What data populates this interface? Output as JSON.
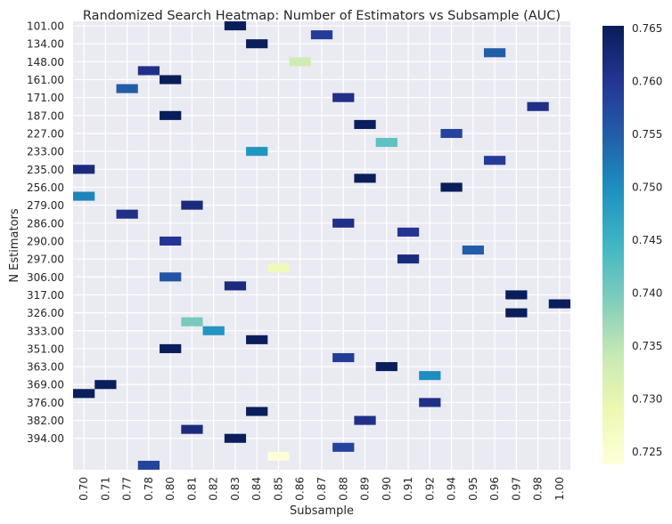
{
  "chart_data": {
    "type": "heatmap",
    "title": "Randomized Search Heatmap: Number of Estimators vs Subsample (AUC)",
    "xlabel": "Subsample",
    "ylabel": "N Estimators",
    "x_categories": [
      "0.70",
      "0.71",
      "0.77",
      "0.78",
      "0.80",
      "0.81",
      "0.82",
      "0.83",
      "0.84",
      "0.85",
      "0.86",
      "0.87",
      "0.88",
      "0.89",
      "0.90",
      "0.91",
      "0.92",
      "0.94",
      "0.95",
      "0.96",
      "0.97",
      "0.98",
      "1.00"
    ],
    "y_tick_labels": [
      "101.00",
      "134.00",
      "148.00",
      "161.00",
      "171.00",
      "187.00",
      "227.00",
      "233.00",
      "235.00",
      "256.00",
      "279.00",
      "286.00",
      "290.00",
      "297.00",
      "306.00",
      "317.00",
      "326.00",
      "333.00",
      "351.00",
      "363.00",
      "369.00",
      "376.00",
      "382.00",
      "394.00"
    ],
    "cells": [
      {
        "x": "0.83",
        "y": 101,
        "value": 0.765
      },
      {
        "x": "0.87",
        "y": 106,
        "value": 0.759
      },
      {
        "x": "0.84",
        "y": 134,
        "value": 0.765
      },
      {
        "x": "0.96",
        "y": 140,
        "value": 0.755
      },
      {
        "x": "0.86",
        "y": 148,
        "value": 0.733
      },
      {
        "x": "0.78",
        "y": 155,
        "value": 0.761
      },
      {
        "x": "0.80",
        "y": 161,
        "value": 0.765
      },
      {
        "x": "0.77",
        "y": 166,
        "value": 0.755
      },
      {
        "x": "0.88",
        "y": 171,
        "value": 0.761
      },
      {
        "x": "0.98",
        "y": 182,
        "value": 0.761
      },
      {
        "x": "0.80",
        "y": 187,
        "value": 0.765
      },
      {
        "x": "0.89",
        "y": 192,
        "value": 0.765
      },
      {
        "x": "0.94",
        "y": 222,
        "value": 0.758
      },
      {
        "x": "0.90",
        "y": 227,
        "value": 0.742
      },
      {
        "x": "0.84",
        "y": 233,
        "value": 0.749
      },
      {
        "x": "0.96",
        "y": 234,
        "value": 0.759
      },
      {
        "x": "0.70",
        "y": 235,
        "value": 0.762
      },
      {
        "x": "0.89",
        "y": 245,
        "value": 0.765
      },
      {
        "x": "0.94",
        "y": 256,
        "value": 0.765
      },
      {
        "x": "0.70",
        "y": 262,
        "value": 0.751
      },
      {
        "x": "0.81",
        "y": 271,
        "value": 0.762
      },
      {
        "x": "0.77",
        "y": 279,
        "value": 0.761
      },
      {
        "x": "0.88",
        "y": 283,
        "value": 0.761
      },
      {
        "x": "0.91",
        "y": 286,
        "value": 0.76
      },
      {
        "x": "0.80",
        "y": 288,
        "value": 0.76
      },
      {
        "x": "0.95",
        "y": 290,
        "value": 0.755
      },
      {
        "x": "0.91",
        "y": 293,
        "value": 0.762
      },
      {
        "x": "0.85",
        "y": 297,
        "value": 0.728
      },
      {
        "x": "0.80",
        "y": 301,
        "value": 0.756
      },
      {
        "x": "0.83",
        "y": 306,
        "value": 0.762
      },
      {
        "x": "0.97",
        "y": 312,
        "value": 0.765
      },
      {
        "x": "1.00",
        "y": 317,
        "value": 0.765
      },
      {
        "x": "0.97",
        "y": 322,
        "value": 0.765
      },
      {
        "x": "0.81",
        "y": 326,
        "value": 0.74
      },
      {
        "x": "0.82",
        "y": 329,
        "value": 0.749
      },
      {
        "x": "0.84",
        "y": 330,
        "value": 0.765
      },
      {
        "x": "0.80",
        "y": 333,
        "value": 0.765
      },
      {
        "x": "0.88",
        "y": 345,
        "value": 0.759
      },
      {
        "x": "0.90",
        "y": 351,
        "value": 0.765
      },
      {
        "x": "0.92",
        "y": 357,
        "value": 0.75
      },
      {
        "x": "0.71",
        "y": 363,
        "value": 0.765
      },
      {
        "x": "0.70",
        "y": 366,
        "value": 0.765
      },
      {
        "x": "0.92",
        "y": 369,
        "value": 0.761
      },
      {
        "x": "0.84",
        "y": 372,
        "value": 0.765
      },
      {
        "x": "0.89",
        "y": 376,
        "value": 0.761
      },
      {
        "x": "0.81",
        "y": 379,
        "value": 0.762
      },
      {
        "x": "0.83",
        "y": 382,
        "value": 0.765
      },
      {
        "x": "0.88",
        "y": 388,
        "value": 0.758
      },
      {
        "x": "0.85",
        "y": 394,
        "value": 0.724
      },
      {
        "x": "0.78",
        "y": 400,
        "value": 0.758
      }
    ],
    "colorbar": {
      "colormap": "YlGnBu",
      "min": 0.7238,
      "max": 0.7652,
      "ticks": [
        "0.725",
        "0.730",
        "0.735",
        "0.740",
        "0.745",
        "0.750",
        "0.755",
        "0.760",
        "0.765"
      ]
    },
    "grid": true,
    "background_color": "#eaeaf2",
    "grid_color": "#ffffff"
  }
}
